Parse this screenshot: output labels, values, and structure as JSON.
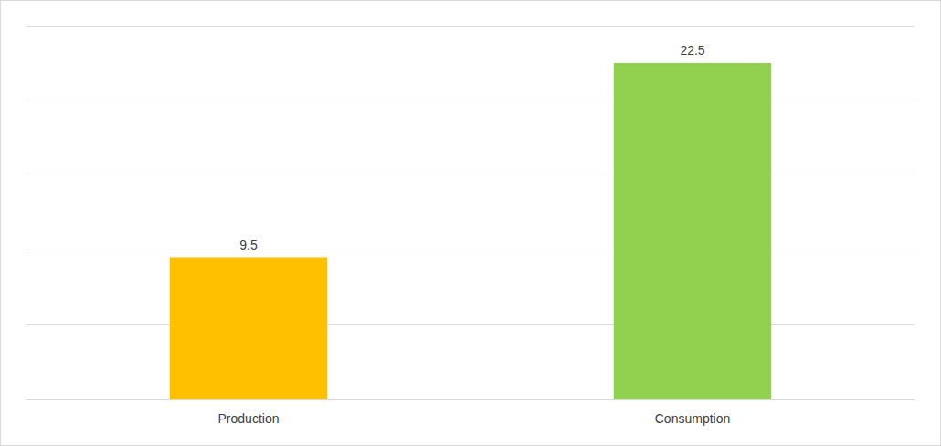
{
  "chart_data": {
    "type": "bar",
    "categories": [
      "Production",
      "Consumption"
    ],
    "values": [
      9.5,
      22.5
    ],
    "colors": [
      "#ffc000",
      "#92d050"
    ],
    "ylim": [
      0,
      25
    ],
    "yticks": [
      0,
      5,
      10,
      15,
      20,
      25
    ],
    "grid": true,
    "data_labels": true,
    "tick_labels": "x"
  }
}
